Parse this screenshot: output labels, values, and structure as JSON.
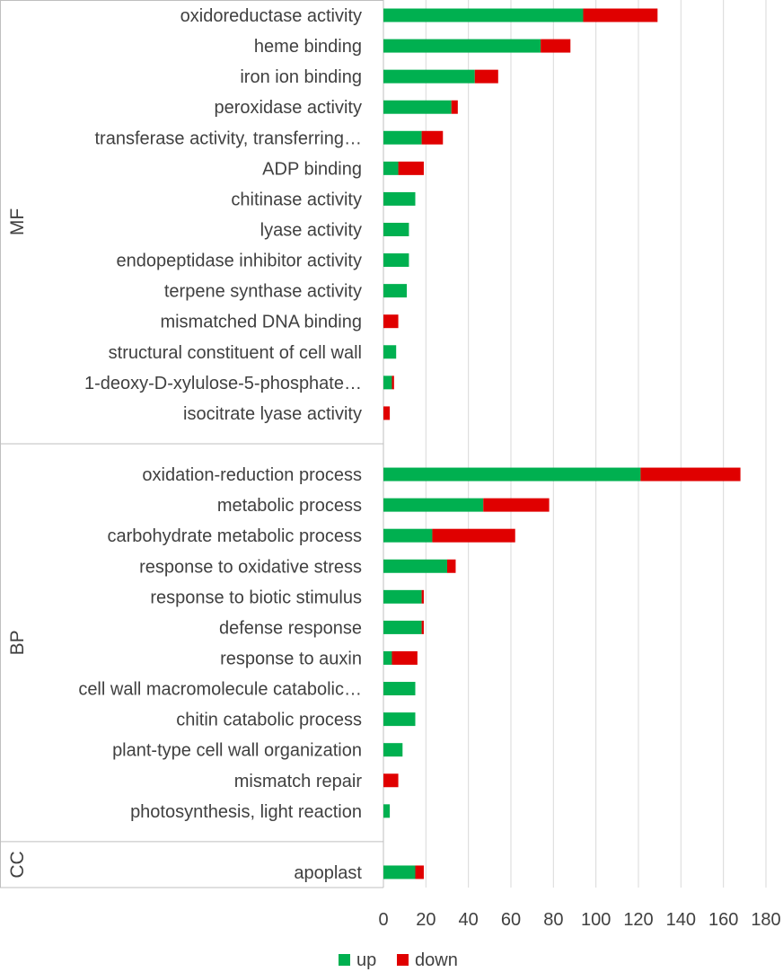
{
  "chart_data": {
    "type": "bar",
    "orientation": "horizontal",
    "stacked": true,
    "grid": true,
    "legend_position": "bottom",
    "xlim": [
      0,
      180
    ],
    "x_ticks": [
      0,
      20,
      40,
      60,
      80,
      100,
      120,
      140,
      160,
      180
    ],
    "groups": [
      {
        "name": "MF",
        "categories": [
          "oxidoreductase activity",
          "heme binding",
          "iron ion binding",
          "peroxidase activity",
          "transferase activity, transferring…",
          "ADP binding",
          "chitinase activity",
          "lyase activity",
          "endopeptidase inhibitor activity",
          "terpene synthase activity",
          "mismatched DNA binding",
          "structural constituent of cell wall",
          "1-deoxy-D-xylulose-5-phosphate…",
          "isocitrate lyase activity"
        ],
        "up": [
          94,
          74,
          43,
          32,
          18,
          7,
          15,
          12,
          12,
          11,
          0,
          6,
          4,
          0
        ],
        "down": [
          35,
          14,
          11,
          3,
          10,
          12,
          0,
          0,
          0,
          0,
          7,
          0,
          1,
          3
        ]
      },
      {
        "name": "BP",
        "categories": [
          "oxidation-reduction process",
          "metabolic process",
          "carbohydrate metabolic process",
          "response to oxidative stress",
          "response to biotic stimulus",
          "defense response",
          "response to auxin",
          "cell wall macromolecule catabolic…",
          "chitin catabolic process",
          "plant-type cell wall organization",
          "mismatch repair",
          "photosynthesis, light reaction"
        ],
        "up": [
          121,
          47,
          23,
          30,
          18,
          18,
          4,
          15,
          15,
          9,
          0,
          3
        ],
        "down": [
          47,
          31,
          39,
          4,
          1,
          1,
          12,
          0,
          0,
          0,
          7,
          0
        ]
      },
      {
        "name": "CC",
        "categories": [
          "apoplast"
        ],
        "up": [
          15
        ],
        "down": [
          4
        ]
      }
    ],
    "series": [
      {
        "name": "up",
        "color": "#00b050"
      },
      {
        "name": "down",
        "color": "#e00000"
      }
    ]
  }
}
